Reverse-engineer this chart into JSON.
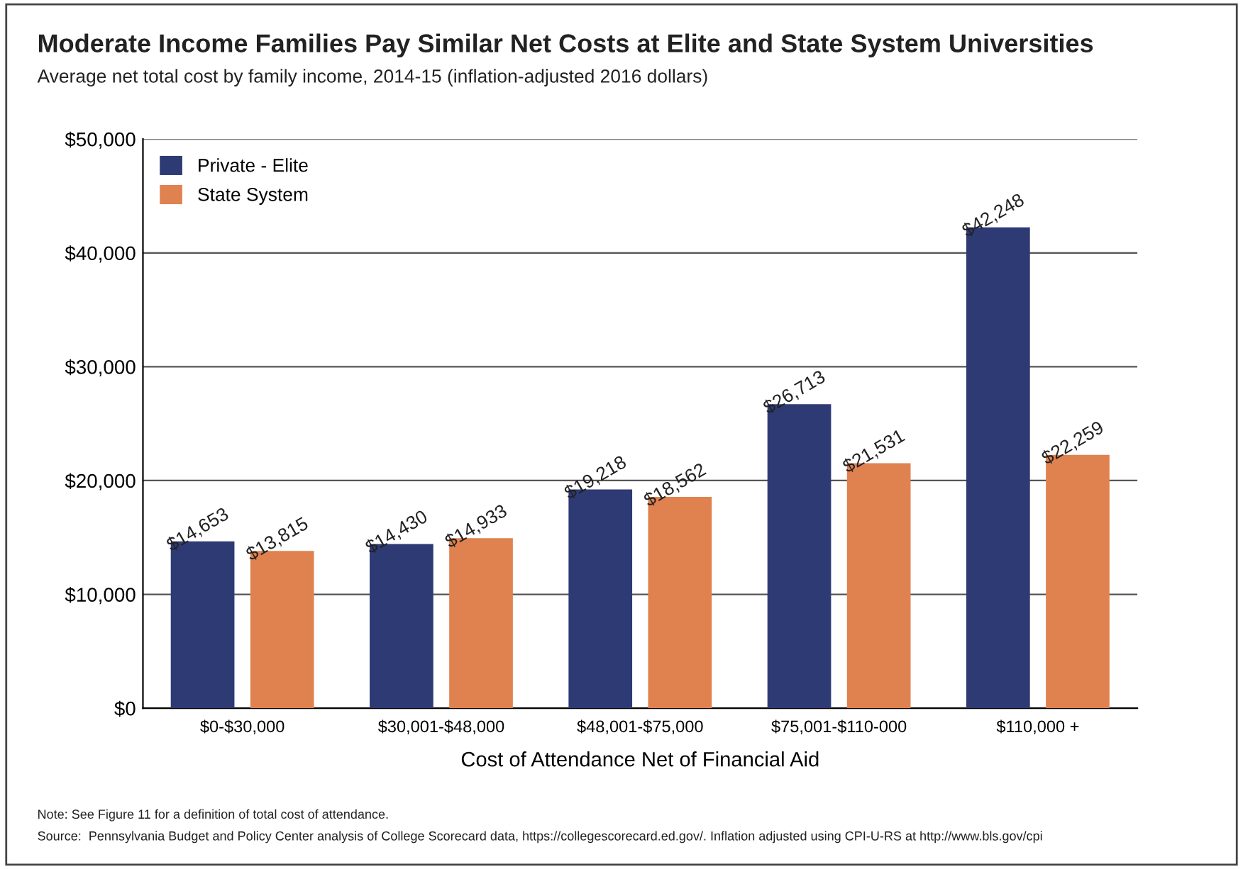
{
  "chart_data": {
    "type": "bar",
    "title": "Moderate Income Families Pay Similar Net Costs at Elite and State System Universities",
    "subtitle": "Average net total cost by family income, 2014-15 (inflation-adjusted 2016 dollars)",
    "xlabel": "Cost of Attendance Net of Financial Aid",
    "categories": [
      "$0-$30,000",
      "$30,001-$48,000",
      "$48,001-$75,000",
      "$75,001-$110-000",
      "$110,000 +"
    ],
    "series": [
      {
        "name": "Private - Elite",
        "color": "#2e3a73",
        "values": [
          14653,
          14430,
          19218,
          26713,
          42248
        ],
        "value_labels": [
          "$14,653",
          "$14,430",
          "$19,218",
          "$26,713",
          "$42,248"
        ]
      },
      {
        "name": "State System",
        "color": "#e0824f",
        "values": [
          13815,
          14933,
          18562,
          21531,
          22259
        ],
        "value_labels": [
          "$13,815",
          "$14,933",
          "$18,562",
          "$21,531",
          "$22,259"
        ]
      }
    ],
    "ylim": [
      0,
      50000
    ],
    "yticks": [
      {
        "value": 0,
        "label": "$0"
      },
      {
        "value": 10000,
        "label": "$10,000"
      },
      {
        "value": 20000,
        "label": "$20,000"
      },
      {
        "value": 30000,
        "label": "$30,000"
      },
      {
        "value": 40000,
        "label": "$40,000"
      },
      {
        "value": 50000,
        "label": "$50,000"
      }
    ],
    "grid": "y",
    "legend": "top left",
    "annotations": [
      "Note: See Figure 11 for a definition of total cost of attendance.",
      "Source:  Pennsylvania Budget and Policy Center analysis of College Scorecard data, https://collegescorecard.ed.gov/. Inflation adjusted using CPI-U-RS at http://www.bls.gov/cpi"
    ]
  }
}
